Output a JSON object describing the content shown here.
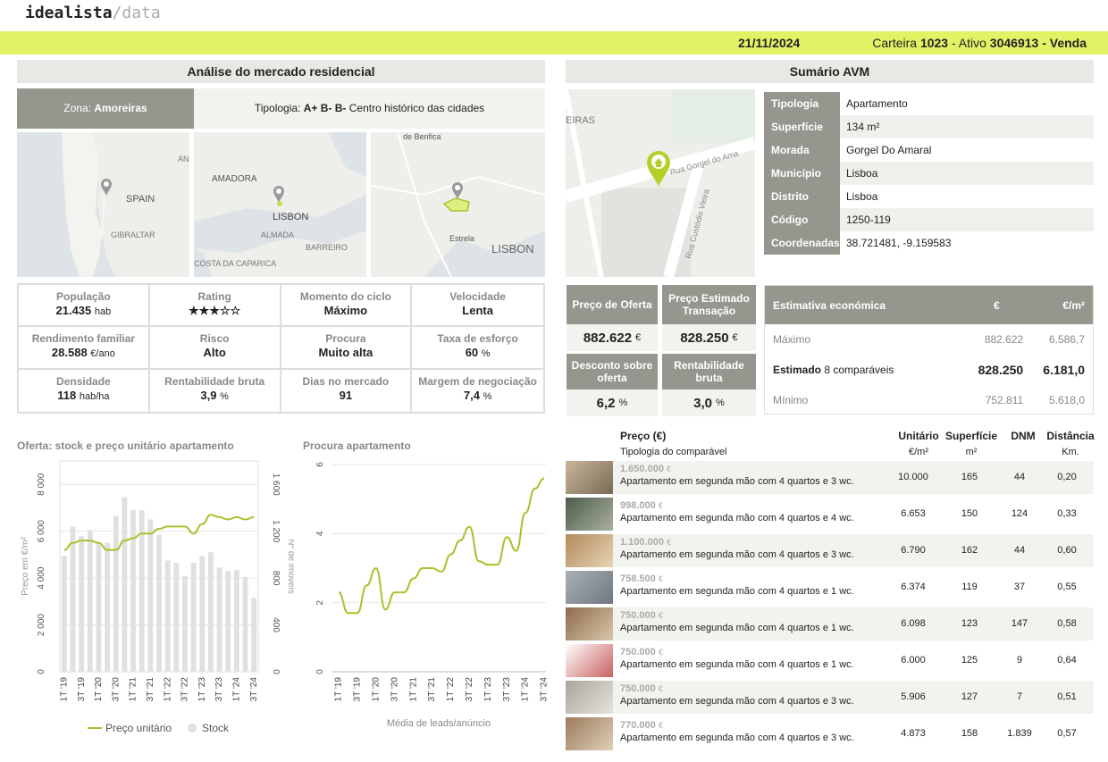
{
  "logo": {
    "part1": "idealista",
    "part2": "/data"
  },
  "header": {
    "date": "21/11/2024",
    "carteira_label": "Carteira",
    "carteira": "1023",
    "ativo_label": "- Ativo",
    "ativo": "3046913",
    "tipo": "- Venda"
  },
  "market": {
    "title": "Análise do mercado residencial",
    "zona_label": "Zona:",
    "zona": "Amoreiras",
    "tipologia_label": "Tipologia:",
    "tipologia_value": "A+ B- B-",
    "tipologia_rest": "Centro histórico das cidades",
    "maps": [
      {
        "labels": [
          "SPAIN",
          "GIBRALTAR",
          "AN"
        ]
      },
      {
        "labels": [
          "AMADORA",
          "LISBON",
          "ALMADA",
          "BARREIRO",
          "COSTA DA CAPARICA"
        ]
      },
      {
        "labels": [
          "de Benfica",
          "Estrela",
          "LISBON"
        ]
      }
    ],
    "stats": [
      {
        "label": "População",
        "value": "21.435",
        "unit": "hab"
      },
      {
        "label": "Rating",
        "value": "★★★☆☆",
        "unit": ""
      },
      {
        "label": "Momento do ciclo",
        "value": "Máximo",
        "unit": ""
      },
      {
        "label": "Velocidade",
        "value": "Lenta",
        "unit": ""
      },
      {
        "label": "Rendimento familiar",
        "value": "28.588",
        "unit": "€/ano"
      },
      {
        "label": "Risco",
        "value": "Alto",
        "unit": ""
      },
      {
        "label": "Procura",
        "value": "Muito alta",
        "unit": ""
      },
      {
        "label": "Taxa de esforço",
        "value": "60",
        "unit": "%"
      },
      {
        "label": "Densidade",
        "value": "118",
        "unit": "hab/ha"
      },
      {
        "label": "Rentabilidade bruta",
        "value": "3,9",
        "unit": "%"
      },
      {
        "label": "Dias no mercado",
        "value": "91",
        "unit": ""
      },
      {
        "label": "Margem de negociação",
        "value": "7,4",
        "unit": "%"
      }
    ]
  },
  "chart1_title": "Oferta: stock e preço unitário apartamento",
  "chart2_title": "Procura apartamento",
  "chart_data": [
    {
      "type": "bar",
      "categories": [
        "1T '19",
        "2T '19",
        "3T '19",
        "4T '19",
        "1T '20",
        "2T '20",
        "3T '20",
        "4T '20",
        "1T '21",
        "2T '21",
        "3T '21",
        "4T '21",
        "1T '22",
        "2T '22",
        "3T '22",
        "4T '22",
        "1T '23",
        "2T '23",
        "3T '23",
        "4T '23",
        "1T '24",
        "2T '24",
        "3T '24"
      ],
      "tick_labels": [
        "1T '19",
        "3T '19",
        "1T '20",
        "3T '20",
        "1T '21",
        "3T '21",
        "1T '22",
        "3T '22",
        "1T '23",
        "3T '23",
        "1T '24",
        "3T '24"
      ],
      "series": [
        {
          "name": "Stock",
          "values": [
            990,
            1240,
            1160,
            1210,
            1100,
            1100,
            1330,
            1490,
            1380,
            1380,
            1300,
            1170,
            950,
            930,
            820,
            930,
            990,
            1020,
            890,
            860,
            870,
            810,
            630
          ]
        },
        {
          "name": "Preço unitário",
          "values": [
            5200,
            5500,
            5600,
            5600,
            5500,
            5200,
            5200,
            5600,
            5700,
            5900,
            5900,
            6100,
            6200,
            6200,
            6200,
            5900,
            6300,
            6700,
            6600,
            6500,
            6600,
            6500,
            6600
          ]
        }
      ],
      "ylabel": "Preço em €/m²",
      "y2label": "Nº de imóveis",
      "ylim": [
        0,
        9000
      ],
      "y2lim": [
        0,
        1800
      ],
      "yticks": [
        "0",
        "2 000",
        "4 000",
        "6 000",
        "8 000"
      ],
      "y2ticks": [
        "0",
        "400",
        "800",
        "1 200",
        "1 600"
      ],
      "legend": [
        "Preço unitário",
        "Stock"
      ]
    },
    {
      "type": "line",
      "categories": [
        "1T '19",
        "2T '19",
        "3T '19",
        "4T '19",
        "1T '20",
        "2T '20",
        "3T '20",
        "4T '20",
        "1T '21",
        "2T '21",
        "3T '21",
        "4T '21",
        "1T '22",
        "2T '22",
        "3T '22",
        "4T '22",
        "1T '23",
        "2T '23",
        "3T '23",
        "4T '23",
        "1T '24",
        "2T '24",
        "3T '24"
      ],
      "tick_labels": [
        "1T '19",
        "3T '19",
        "1T '20",
        "3T '20",
        "1T '21",
        "3T '21",
        "1T '22",
        "3T '22",
        "1T '23",
        "3T '23",
        "1T '24",
        "3T '24"
      ],
      "series": [
        {
          "name": "",
          "values": [
            2.3,
            1.7,
            1.7,
            2.5,
            3.0,
            1.8,
            2.3,
            2.3,
            2.7,
            3.0,
            3.0,
            2.9,
            3.4,
            3.8,
            4.2,
            3.2,
            3.1,
            3.1,
            3.9,
            3.5,
            4.6,
            5.3,
            5.6
          ]
        }
      ],
      "xlabel": "Média de leads/anúncio",
      "ylim": [
        0,
        6
      ],
      "yticks": [
        "0",
        "2",
        "4",
        "6"
      ]
    }
  ],
  "avm": {
    "title": "Sumário AVM",
    "rows": [
      {
        "k": "Tipologia",
        "v": "Apartamento"
      },
      {
        "k": "Superfície",
        "v": "134 m²"
      },
      {
        "k": "Morada",
        "v": "Gorgel Do Amaral"
      },
      {
        "k": "Município",
        "v": "Lisboa"
      },
      {
        "k": "Distrito",
        "v": "Lisboa"
      },
      {
        "k": "Código postal",
        "v": "1250-119"
      },
      {
        "k": "Coordenadas",
        "v": "38.721481, -9.159583"
      }
    ],
    "map_labels": [
      "EIRAS",
      "Rua Gorgel do Ama",
      "Rua Custódio Vieira"
    ],
    "preco_oferta_label": "Preço de Oferta",
    "preco_oferta": "882.622",
    "euro": "€",
    "preco_estimado_label": "Preço Estimado Transação",
    "preco_estimado": "828.250",
    "desconto_label": "Desconto sobre oferta",
    "desconto": "6,2",
    "pct": "%",
    "rent_label": "Rentabilidade bruta",
    "rent": "3,0",
    "est_title": "Estimativa económica",
    "est_col1": "€",
    "est_col2": "€/m²",
    "est_max_label": "Máximo",
    "est_max": "882.622",
    "est_max_m2": "6.586,7",
    "est_label": "Estimado",
    "est_comp": "8 comparáveis",
    "est_val": "828.250",
    "est_m2": "6.181,0",
    "est_min_label": "Mínimo",
    "est_min": "752.811",
    "est_min_m2": "5.618,0"
  },
  "comparables": {
    "h_preco": "Preço (€)",
    "h_tip": "Tipologia do comparável",
    "h_unit": "Unitário",
    "h_unit_sub": "€/m²",
    "h_sup": "Superfície",
    "h_sup_sub": "m²",
    "h_dnm": "DNM",
    "h_dist": "Distância",
    "h_dist_sub": "Km.",
    "rows": [
      {
        "price": "1.650.000",
        "desc": "Apartamento em segunda mão com 4 quartos e 3 wc.",
        "unit": "10.000",
        "sup": "165",
        "dnm": "44",
        "dist": "0,20"
      },
      {
        "price": "998.000",
        "desc": "Apartamento em segunda mão com 4 quartos e 4 wc.",
        "unit": "6.653",
        "sup": "150",
        "dnm": "124",
        "dist": "0,33"
      },
      {
        "price": "1.100.000",
        "desc": "Apartamento em segunda mão com 4 quartos e 3 wc.",
        "unit": "6.790",
        "sup": "162",
        "dnm": "44",
        "dist": "0,60"
      },
      {
        "price": "758.500",
        "desc": "Apartamento em segunda mão com 4 quartos e 1 wc.",
        "unit": "6.374",
        "sup": "119",
        "dnm": "37",
        "dist": "0,55"
      },
      {
        "price": "750.000",
        "desc": "Apartamento em segunda mão com 4 quartos e 1 wc.",
        "unit": "6.098",
        "sup": "123",
        "dnm": "147",
        "dist": "0,58"
      },
      {
        "price": "750.000",
        "desc": "Apartamento em segunda mão com 4 quartos e 1 wc.",
        "unit": "6.000",
        "sup": "125",
        "dnm": "9",
        "dist": "0,64"
      },
      {
        "price": "750.000",
        "desc": "Apartamento em segunda mão com 4 quartos e 3 wc.",
        "unit": "5.906",
        "sup": "127",
        "dnm": "7",
        "dist": "0,51"
      },
      {
        "price": "770.000",
        "desc": "Apartamento em segunda mão com 4 quartos e 3 wc.",
        "unit": "4.873",
        "sup": "158",
        "dnm": "1.839",
        "dist": "0,57"
      }
    ]
  },
  "colors": {
    "accent": "#e1f264",
    "line": "#a3c42c",
    "bar": "#e0e0e0",
    "grey": "#96968e"
  }
}
